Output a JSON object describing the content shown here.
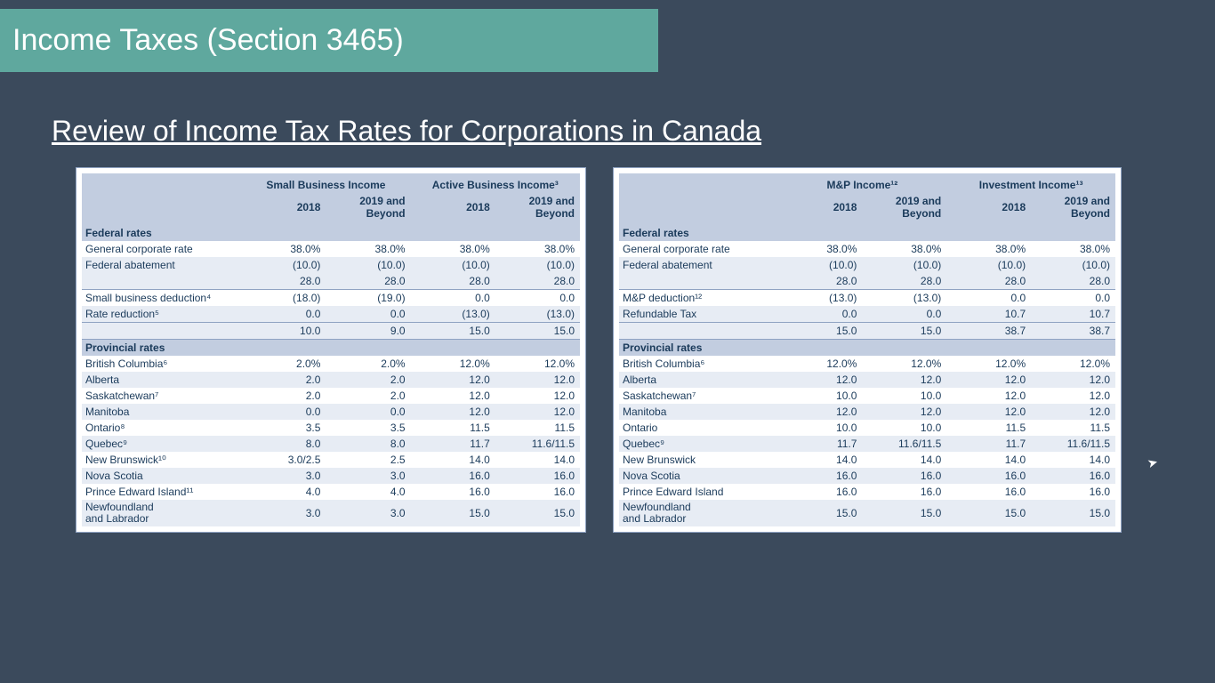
{
  "colors": {
    "page_bg": "#3b4a5c",
    "banner_bg": "#5fa89e",
    "table_bg": "#ffffff",
    "header_band": "#c2cde0",
    "row_alt": "#e7ecf4",
    "text": "#1a3a5a",
    "border": "#8fa3c2",
    "white": "#ffffff"
  },
  "banner": {
    "title": "Income Taxes (Section 3465)"
  },
  "subtitle": "Review of Income Tax Rates for Corporations in Canada",
  "left_table": {
    "group_headers": [
      "",
      "Small Business Income",
      "Active Business Income³"
    ],
    "year_headers": [
      "",
      "2018",
      "2019 and Beyond",
      "2018",
      "2019 and Beyond"
    ],
    "sections": [
      {
        "title": "Federal rates",
        "rows": [
          {
            "label": "General corporate rate",
            "v": [
              "38.0%",
              "38.0%",
              "38.0%",
              "38.0%"
            ]
          },
          {
            "label": "Federal abatement",
            "v": [
              "(10.0)",
              "(10.0)",
              "(10.0)",
              "(10.0)"
            ],
            "v2": [
              "28.0",
              "28.0",
              "28.0",
              "28.0"
            ]
          },
          {
            "label": "Small business deduction⁴",
            "v": [
              "(18.0)",
              "(19.0)",
              "0.0",
              "0.0"
            ]
          },
          {
            "label": "Rate reduction⁵",
            "v": [
              "0.0",
              "0.0",
              "(13.0)",
              "(13.0)"
            ]
          }
        ],
        "total": [
          "",
          "10.0",
          "9.0",
          "15.0",
          "15.0"
        ]
      },
      {
        "title": "Provincial rates",
        "rows": [
          {
            "label": "British Columbia⁶",
            "v": [
              "2.0%",
              "2.0%",
              "12.0%",
              "12.0%"
            ]
          },
          {
            "label": "Alberta",
            "v": [
              "2.0",
              "2.0",
              "12.0",
              "12.0"
            ]
          },
          {
            "label": "Saskatchewan⁷",
            "v": [
              "2.0",
              "2.0",
              "12.0",
              "12.0"
            ]
          },
          {
            "label": "Manitoba",
            "v": [
              "0.0",
              "0.0",
              "12.0",
              "12.0"
            ]
          },
          {
            "label": "Ontario⁸",
            "v": [
              "3.5",
              "3.5",
              "11.5",
              "11.5"
            ]
          },
          {
            "label": "Quebec⁹",
            "v": [
              "8.0",
              "8.0",
              "11.7",
              "11.6/11.5"
            ]
          },
          {
            "label": "New Brunswick¹⁰",
            "v": [
              "3.0/2.5",
              "2.5",
              "14.0",
              "14.0"
            ]
          },
          {
            "label": "Nova Scotia",
            "v": [
              "3.0",
              "3.0",
              "16.0",
              "16.0"
            ]
          },
          {
            "label": "Prince Edward Island¹¹",
            "v": [
              "4.0",
              "4.0",
              "16.0",
              "16.0"
            ]
          },
          {
            "label": "Newfoundland and Labrador",
            "v": [
              "3.0",
              "3.0",
              "15.0",
              "15.0"
            ],
            "multiline": true
          }
        ]
      }
    ]
  },
  "right_table": {
    "group_headers": [
      "",
      "M&P Income¹²",
      "Investment Income¹³"
    ],
    "year_headers": [
      "",
      "2018",
      "2019 and Beyond",
      "2018",
      "2019 and Beyond"
    ],
    "sections": [
      {
        "title": "Federal rates",
        "rows": [
          {
            "label": "General corporate rate",
            "v": [
              "38.0%",
              "38.0%",
              "38.0%",
              "38.0%"
            ]
          },
          {
            "label": "Federal abatement",
            "v": [
              "(10.0)",
              "(10.0)",
              "(10.0)",
              "(10.0)"
            ],
            "v2": [
              "28.0",
              "28.0",
              "28.0",
              "28.0"
            ]
          },
          {
            "label": "M&P deduction¹²",
            "v": [
              "(13.0)",
              "(13.0)",
              "0.0",
              "0.0"
            ]
          },
          {
            "label": "Refundable Tax",
            "v": [
              "0.0",
              "0.0",
              "10.7",
              "10.7"
            ]
          }
        ],
        "total": [
          "",
          "15.0",
          "15.0",
          "38.7",
          "38.7"
        ]
      },
      {
        "title": "Provincial rates",
        "rows": [
          {
            "label": "British Columbia⁶",
            "v": [
              "12.0%",
              "12.0%",
              "12.0%",
              "12.0%"
            ]
          },
          {
            "label": "Alberta",
            "v": [
              "12.0",
              "12.0",
              "12.0",
              "12.0"
            ]
          },
          {
            "label": "Saskatchewan⁷",
            "v": [
              "10.0",
              "10.0",
              "12.0",
              "12.0"
            ]
          },
          {
            "label": "Manitoba",
            "v": [
              "12.0",
              "12.0",
              "12.0",
              "12.0"
            ]
          },
          {
            "label": "Ontario",
            "v": [
              "10.0",
              "10.0",
              "11.5",
              "11.5"
            ]
          },
          {
            "label": "Quebec⁹",
            "v": [
              "11.7",
              "11.6/11.5",
              "11.7",
              "11.6/11.5"
            ]
          },
          {
            "label": "New Brunswick",
            "v": [
              "14.0",
              "14.0",
              "14.0",
              "14.0"
            ]
          },
          {
            "label": "Nova Scotia",
            "v": [
              "16.0",
              "16.0",
              "16.0",
              "16.0"
            ]
          },
          {
            "label": "Prince Edward Island",
            "v": [
              "16.0",
              "16.0",
              "16.0",
              "16.0"
            ]
          },
          {
            "label": "Newfoundland and Labrador",
            "v": [
              "15.0",
              "15.0",
              "15.0",
              "15.0"
            ],
            "multiline": true
          }
        ]
      }
    ]
  }
}
